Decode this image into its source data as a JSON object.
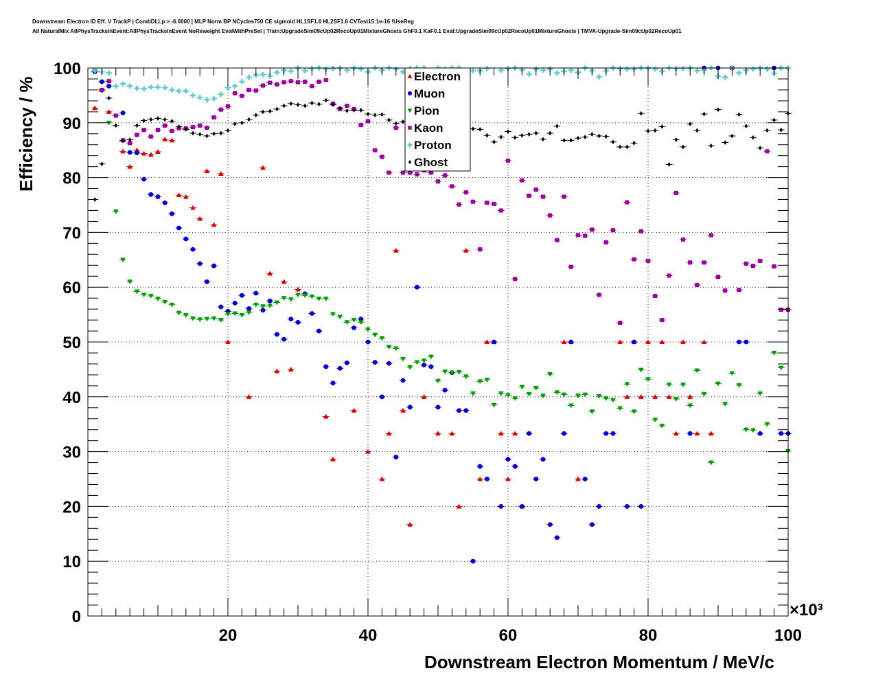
{
  "title_lines": [
    "Downstream Electron ID Eff. V TrackP | CombDLLp > -6.0000 | MLP Norm BP NCycles750 CE sigmoid HL1SF1.6 HL2SF1.6 CVTest15:1e-16 !UseReg",
    "All NaturalMix AllPhysTracksInEvent:AllPhysTracksInEvent NoReweight EvalWithPreSel | Train:UpgradeSim09cUp02RecoUp01MixtureGhosts GhF0.1 KaF0.1 Eval:UpgradeSim09cUp02RecoUp01MixtureGhosts | TMVA-Upgrade-Sim09cUp02RecoUp01"
  ],
  "chart_data": {
    "type": "scatter",
    "xlabel": "Downstream Electron Momentum / MeV/c",
    "ylabel": "Efficiency / %",
    "x_multiplier_label": "×10³",
    "xlim": [
      0,
      100
    ],
    "ylim": [
      0,
      100
    ],
    "x_unit_scale": 1000,
    "grid": true,
    "legend_position": "top-center",
    "x_tick_labels": [
      "20",
      "40",
      "60",
      "80",
      "100"
    ],
    "y_tick_labels": [
      "0",
      "10",
      "20",
      "30",
      "40",
      "50",
      "60",
      "70",
      "80",
      "90",
      "100"
    ],
    "series": [
      {
        "name": "Electron",
        "color": "#cc0000",
        "marker": "triangle-up",
        "x": [
          1,
          3,
          5,
          6,
          7,
          8,
          9,
          10,
          11,
          12,
          13,
          14,
          15,
          16,
          17,
          18,
          19,
          20,
          23,
          25,
          26,
          27,
          28,
          29,
          30,
          34,
          35,
          38,
          40,
          42,
          43,
          44,
          45,
          46,
          48,
          50,
          52,
          53,
          54,
          56,
          57,
          58,
          59,
          60,
          61,
          62,
          68,
          69,
          70,
          76,
          77,
          78,
          79,
          80,
          81,
          82,
          83,
          84,
          85,
          86,
          87,
          88,
          89
        ],
        "y": [
          92.7,
          92,
          84.8,
          82,
          85,
          84.4,
          84.2,
          84.7,
          87,
          86.8,
          76.8,
          76.5,
          74.5,
          72.5,
          81.2,
          71.4,
          80.7,
          50,
          40,
          81.8,
          62.5,
          44.7,
          61,
          45,
          59.6,
          36.4,
          28.6,
          37.5,
          30,
          25,
          33.3,
          66.7,
          37.5,
          16.7,
          40,
          33.3,
          33.3,
          20,
          66.7,
          25,
          50,
          50,
          33.3,
          25,
          33.3,
          20,
          50,
          50,
          25,
          50,
          40,
          50,
          40,
          50,
          40,
          50,
          40,
          33.3,
          50,
          40,
          33.3,
          50,
          33.3
        ]
      },
      {
        "name": "Muon",
        "color": "#0000cc",
        "marker": "circle",
        "x": [
          1,
          2,
          3,
          5,
          6,
          7,
          8,
          9,
          10,
          11,
          12,
          13,
          14,
          15,
          16,
          17,
          18,
          19,
          20,
          21,
          22,
          23,
          24,
          25,
          26,
          27,
          28,
          29,
          30,
          31,
          32,
          33,
          34,
          35,
          36,
          37,
          38,
          39,
          40,
          41,
          42,
          43,
          44,
          45,
          46,
          47,
          48,
          49,
          50,
          51,
          52,
          53,
          54,
          55,
          56,
          57,
          58,
          59,
          60,
          61,
          62,
          63,
          64,
          65,
          66,
          67,
          68,
          69,
          71,
          72,
          73,
          74,
          75,
          77,
          78,
          79,
          86,
          88,
          90,
          92,
          93,
          94,
          96,
          98,
          99,
          100
        ],
        "y": [
          99.3,
          97.5,
          96.7,
          91.8,
          84.6,
          84.5,
          79.7,
          76.9,
          76.5,
          75.4,
          73.4,
          70.8,
          68.8,
          66.9,
          64.3,
          61,
          63.9,
          56.4,
          55.6,
          57.1,
          58.5,
          56.1,
          58.9,
          55.8,
          57.5,
          51.4,
          50.5,
          54.2,
          53.6,
          58.8,
          55.2,
          52,
          45.5,
          42.5,
          45.2,
          46.2,
          52.6,
          54.2,
          50,
          46.3,
          40,
          46.1,
          29,
          43,
          38.1,
          60,
          45.8,
          45.5,
          38.1,
          41.2,
          44.4,
          37.5,
          37.5,
          10,
          27.3,
          25,
          50,
          20,
          28.6,
          27.3,
          20,
          33.3,
          25,
          28.6,
          16.7,
          14.3,
          33.3,
          50,
          25,
          16.7,
          20,
          33.3,
          33.3,
          20,
          50,
          20,
          33.3,
          100,
          100,
          100,
          50,
          50,
          33.3,
          100,
          33.3,
          33.3
        ]
      },
      {
        "name": "Pion",
        "color": "#009900",
        "marker": "triangle-down",
        "x": [
          1,
          2,
          3,
          4,
          5,
          6,
          7,
          8,
          9,
          10,
          11,
          12,
          13,
          14,
          15,
          16,
          17,
          18,
          19,
          20,
          21,
          22,
          23,
          24,
          25,
          26,
          27,
          28,
          29,
          30,
          31,
          32,
          33,
          34,
          35,
          36,
          37,
          38,
          39,
          40,
          41,
          42,
          43,
          44,
          45,
          46,
          47,
          48,
          49,
          50,
          51,
          52,
          53,
          54,
          55,
          56,
          57,
          58,
          59,
          60,
          61,
          62,
          63,
          64,
          65,
          66,
          67,
          68,
          69,
          70,
          71,
          72,
          73,
          74,
          75,
          76,
          77,
          78,
          79,
          80,
          81,
          82,
          83,
          84,
          85,
          86,
          87,
          88,
          89,
          90,
          91,
          92,
          93,
          94,
          95,
          96,
          97,
          98,
          99,
          100
        ],
        "y": [
          99.5,
          95.8,
          90,
          73.8,
          65,
          61,
          59.2,
          58.6,
          58.4,
          57.9,
          57.3,
          56.8,
          55.3,
          54.9,
          54.3,
          54.1,
          54.2,
          54.3,
          54,
          55.1,
          55.2,
          54.9,
          55.4,
          56.8,
          56.5,
          56.6,
          57.2,
          58,
          57.8,
          58.6,
          58.5,
          58.3,
          57.9,
          57.9,
          55.1,
          54.6,
          53.6,
          54,
          53.6,
          52.3,
          51.3,
          50.7,
          49.1,
          48.8,
          46.9,
          45.4,
          46.3,
          46.6,
          47.3,
          42.9,
          44.6,
          44.4,
          44.5,
          43.7,
          40.6,
          42.8,
          43.1,
          38.5,
          40.6,
          40.3,
          39.7,
          41.8,
          40.5,
          41.6,
          40.2,
          44.1,
          40.8,
          40.4,
          38.4,
          40.2,
          40.4,
          37.3,
          40.1,
          39.7,
          39.4,
          37.9,
          42.3,
          37.3,
          44.9,
          43.2,
          35.8,
          34.7,
          42.2,
          39.6,
          42.2,
          38.4,
          44.8,
          40.5,
          28,
          42.4,
          38.7,
          44.3,
          42.1,
          34,
          33.9,
          40.6,
          35,
          48.0,
          45.3,
          30.1
        ]
      },
      {
        "name": "Kaon",
        "color": "#990099",
        "marker": "square",
        "x": [
          2,
          3,
          4,
          5,
          6,
          7,
          8,
          9,
          10,
          11,
          12,
          13,
          14,
          15,
          16,
          17,
          18,
          19,
          20,
          21,
          22,
          23,
          24,
          25,
          26,
          27,
          28,
          29,
          30,
          31,
          32,
          33,
          34,
          35,
          36,
          37,
          38,
          39,
          40,
          41,
          42,
          43,
          44,
          45,
          46,
          47,
          48,
          49,
          50,
          51,
          52,
          53,
          54,
          55,
          56,
          57,
          58,
          59,
          60,
          61,
          62,
          63,
          64,
          65,
          66,
          67,
          68,
          69,
          70,
          71,
          72,
          73,
          74,
          75,
          76,
          77,
          78,
          79,
          80,
          81,
          82,
          83,
          84,
          85,
          86,
          87,
          88,
          89,
          90,
          91,
          92,
          93,
          94,
          95,
          96,
          97,
          98,
          99,
          100
        ],
        "y": [
          96,
          97.6,
          91.3,
          86.8,
          86.3,
          87.8,
          88.7,
          87.5,
          88.7,
          89.5,
          88.5,
          89,
          89,
          89.2,
          89.5,
          89.1,
          91,
          92.4,
          93,
          95.4,
          94.9,
          96,
          95.9,
          96.8,
          97.3,
          97,
          97.4,
          97.6,
          97.4,
          97.5,
          96.7,
          97.5,
          97.8,
          93.5,
          92.5,
          93.1,
          92.5,
          89.6,
          90.3,
          85,
          83.8,
          80.9,
          89.1,
          80.9,
          80.9,
          80.6,
          81.3,
          80.9,
          79.3,
          80.4,
          78.4,
          75.1,
          77.3,
          75.6,
          66.9,
          75.4,
          75.2,
          74,
          83.1,
          61.5,
          79.5,
          76.7,
          77.8,
          76.5,
          73.1,
          68.6,
          76.5,
          63.7,
          69.5,
          69.4,
          70.5,
          58.6,
          68.2,
          70.4,
          53.5,
          75.5,
          65.1,
          70.2,
          64.8,
          58.4,
          54,
          62.1,
          77.2,
          68.7,
          64.5,
          60.4,
          64.5,
          69.5,
          61.9,
          59.4,
          100,
          59.5,
          64.3,
          63.9,
          64.8,
          84.8,
          63.8,
          55.9,
          55.9
        ]
      },
      {
        "name": "Proton",
        "color": "#66cccc",
        "marker": "cross",
        "x": [
          1,
          2,
          3,
          4,
          5,
          6,
          7,
          8,
          9,
          10,
          11,
          12,
          13,
          14,
          15,
          16,
          17,
          18,
          19,
          20,
          21,
          22,
          23,
          24,
          25,
          26,
          27,
          28,
          29,
          30,
          31,
          32,
          33,
          34,
          35,
          36,
          37,
          38,
          39,
          40,
          41,
          42,
          43,
          44,
          45,
          46,
          47,
          48,
          49,
          50,
          51,
          52,
          53,
          54,
          55,
          56,
          57,
          58,
          59,
          60,
          61,
          62,
          63,
          64,
          65,
          66,
          67,
          68,
          69,
          70,
          71,
          72,
          73,
          74,
          75,
          76,
          77,
          78,
          79,
          80,
          81,
          82,
          83,
          84,
          85,
          86,
          87,
          88,
          89,
          90,
          91,
          92,
          93,
          94,
          95,
          96,
          97,
          98,
          99,
          100
        ],
        "y": [
          99.5,
          99.3,
          99.1,
          96.7,
          97.1,
          96.7,
          96.3,
          96.2,
          96.5,
          96.5,
          96.4,
          96,
          95.8,
          95.8,
          95,
          94.6,
          94.2,
          94.4,
          95.2,
          96.4,
          96.7,
          97.5,
          98.3,
          98.7,
          98.8,
          98.5,
          99.2,
          99.6,
          99.4,
          100,
          99.5,
          99.9,
          100,
          99.8,
          99.9,
          100,
          99.6,
          100,
          99.8,
          99.3,
          100,
          99.6,
          100,
          99.8,
          99.3,
          99.9,
          100,
          100,
          99.4,
          100,
          99.8,
          100,
          100,
          99.4,
          99.5,
          99.5,
          99.9,
          100.1,
          99.6,
          99.9,
          100,
          99.7,
          98.9,
          99.8,
          99.6,
          99.8,
          99.1,
          99.4,
          99.6,
          99.2,
          100,
          99.5,
          98.4,
          99.5,
          100,
          99.9,
          99.8,
          99.8,
          100,
          100,
          99.8,
          99.4,
          100,
          99.9,
          99.9,
          100,
          99.5,
          99.6,
          100,
          98.5,
          98.3,
          100,
          99.1,
          99.6,
          99.8,
          100,
          99.8,
          99,
          100,
          100
        ]
      },
      {
        "name": "Ghost",
        "color": "#000000",
        "marker": "diamond",
        "x": [
          1,
          2,
          3,
          4,
          5,
          6,
          7,
          8,
          9,
          10,
          11,
          12,
          13,
          14,
          15,
          16,
          17,
          18,
          19,
          20,
          21,
          22,
          23,
          24,
          25,
          26,
          27,
          28,
          29,
          30,
          31,
          32,
          33,
          34,
          35,
          36,
          37,
          38,
          39,
          40,
          41,
          42,
          43,
          44,
          45,
          46,
          47,
          48,
          49,
          50,
          51,
          52,
          53,
          54,
          55,
          56,
          57,
          58,
          59,
          60,
          61,
          62,
          63,
          64,
          65,
          66,
          67,
          68,
          69,
          70,
          71,
          72,
          73,
          74,
          75,
          76,
          77,
          78,
          79,
          80,
          81,
          82,
          83,
          84,
          85,
          86,
          87,
          88,
          89,
          90,
          91,
          92,
          93,
          94,
          95,
          96,
          97,
          98,
          99,
          100
        ],
        "y": [
          76,
          82.5,
          94.5,
          89.5,
          86.7,
          86.9,
          89.5,
          90.4,
          90.6,
          90.8,
          90.6,
          90.3,
          89.3,
          88.8,
          88.1,
          87.9,
          87.6,
          88,
          88.1,
          88.6,
          89.8,
          90,
          90.6,
          91.4,
          92,
          92.1,
          92.5,
          93.1,
          93.5,
          93.3,
          93.1,
          93.6,
          93.4,
          94.1,
          93.3,
          92.7,
          92.2,
          92.3,
          92.3,
          91.6,
          91.4,
          91.5,
          90.5,
          89.9,
          90.2,
          89.6,
          89.6,
          88.6,
          87.6,
          89.2,
          87.8,
          87.9,
          87.3,
          88.1,
          88.9,
          88.8,
          87.7,
          86.5,
          87.4,
          88.4,
          87.3,
          87.7,
          87.9,
          88.1,
          87,
          88.1,
          89.4,
          86.8,
          86.8,
          87.2,
          87.4,
          87.9,
          87.6,
          87.5,
          86.5,
          85.6,
          85.6,
          86.3,
          91.7,
          88.5,
          88.6,
          89.3,
          82.4,
          86.9,
          85.6,
          89.8,
          88.6,
          91.6,
          85.8,
          92.4,
          86.4,
          87.6,
          91.5,
          89.4,
          87.3,
          85.4,
          88.6,
          90.5,
          88.7,
          91.7
        ]
      }
    ]
  }
}
